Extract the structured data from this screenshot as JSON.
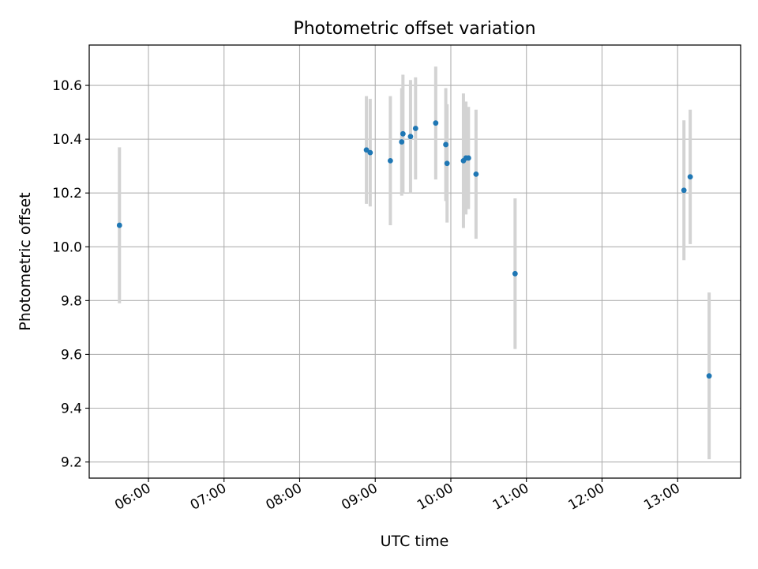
{
  "chart_data": {
    "type": "scatter",
    "title": "Photometric offset variation",
    "xlabel": "UTC time",
    "ylabel": "Photometric offset",
    "x_format": "HH:MM",
    "x_ticks": [
      "06:00",
      "07:00",
      "08:00",
      "09:00",
      "10:00",
      "11:00",
      "12:00",
      "13:00"
    ],
    "y_ticks": [
      "9.2",
      "9.4",
      "9.6",
      "9.8",
      "10.0",
      "10.2",
      "10.4",
      "10.6"
    ],
    "xlim": [
      "05:13",
      "13:50"
    ],
    "ylim": [
      9.14,
      10.75
    ],
    "grid": true,
    "series": [
      {
        "marker_color": "#1f77b4",
        "errorbar_color": "#d3d3d3",
        "points": [
          {
            "x": "05:37",
            "y": 10.08,
            "err": 0.29
          },
          {
            "x": "08:53",
            "y": 10.36,
            "err": 0.2
          },
          {
            "x": "08:56",
            "y": 10.35,
            "err": 0.2
          },
          {
            "x": "09:12",
            "y": 10.32,
            "err": 0.24
          },
          {
            "x": "09:21",
            "y": 10.39,
            "err": 0.2
          },
          {
            "x": "09:22",
            "y": 10.42,
            "err": 0.22
          },
          {
            "x": "09:28",
            "y": 10.41,
            "err": 0.21
          },
          {
            "x": "09:32",
            "y": 10.44,
            "err": 0.19
          },
          {
            "x": "09:48",
            "y": 10.46,
            "err": 0.21
          },
          {
            "x": "09:56",
            "y": 10.38,
            "err": 0.21
          },
          {
            "x": "09:57",
            "y": 10.31,
            "err": 0.22
          },
          {
            "x": "10:10",
            "y": 10.32,
            "err": 0.25
          },
          {
            "x": "10:12",
            "y": 10.33,
            "err": 0.21
          },
          {
            "x": "10:14",
            "y": 10.33,
            "err": 0.19
          },
          {
            "x": "10:20",
            "y": 10.27,
            "err": 0.24
          },
          {
            "x": "10:51",
            "y": 9.9,
            "err": 0.28
          },
          {
            "x": "13:05",
            "y": 10.21,
            "err": 0.26
          },
          {
            "x": "13:10",
            "y": 10.26,
            "err": 0.25
          },
          {
            "x": "13:25",
            "y": 9.52,
            "err": 0.31
          }
        ]
      }
    ]
  }
}
